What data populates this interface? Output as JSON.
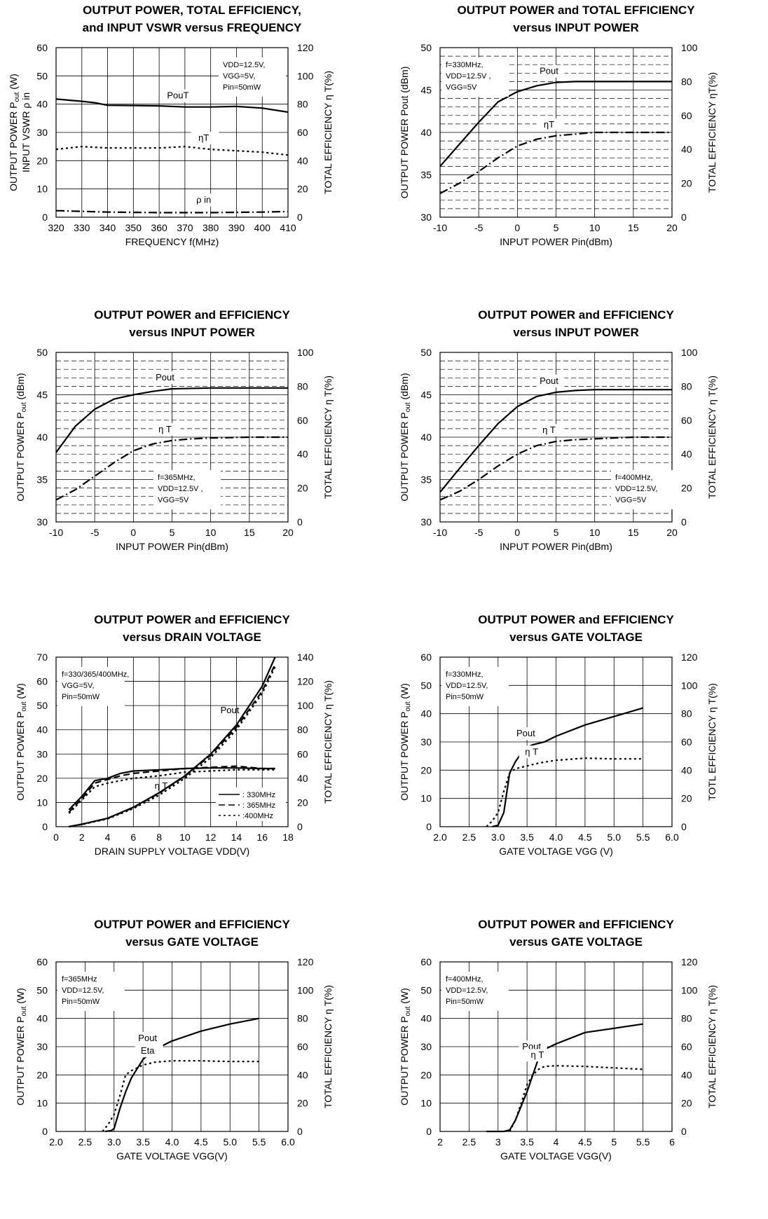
{
  "chart_data": [
    {
      "type": "line",
      "title": [
        "OUTPUT POWER, TOTAL EFFICIENCY,",
        "and INPUT VSWR versus FREQUENCY"
      ],
      "xlabel": "FREQUENCY f(MHz)",
      "ylabel_left": [
        "OUTPUT POWER P",
        "out",
        " (W)"
      ],
      "ylabel_left2": "INPUT VSWR ρ in",
      "ylabel_right": "TOTAL EFFICIENCY η T(%)",
      "xlim": [
        320,
        410
      ],
      "ylim": [
        0,
        60
      ],
      "y2lim": [
        0,
        120
      ],
      "xticks": [
        "320",
        "330",
        "340",
        "350",
        "360",
        "370",
        "380",
        "390",
        "400",
        "410"
      ],
      "yticks": [
        "0",
        "10",
        "20",
        "30",
        "40",
        "50",
        "60"
      ],
      "y2ticks": [
        "0",
        "20",
        "40",
        "60",
        "80",
        "100",
        "120"
      ],
      "grid": "major",
      "conditions": [
        "VDD=12.5V,",
        "VGG=5V,",
        "Pin=50mW"
      ],
      "series": [
        {
          "name": "PouT",
          "axis": "left",
          "style": "solid",
          "x": [
            320,
            330,
            335,
            340,
            350,
            360,
            370,
            380,
            390,
            400,
            410
          ],
          "y": [
            41.8,
            41,
            40.5,
            39.6,
            39.5,
            39.4,
            39,
            39,
            39.2,
            38.6,
            37.2
          ]
        },
        {
          "name": "ηT",
          "axis": "right",
          "style": "dot",
          "x": [
            320,
            330,
            340,
            350,
            360,
            370,
            380,
            390,
            400,
            410
          ],
          "y": [
            48,
            50,
            49,
            49,
            49,
            50,
            48,
            47,
            46,
            44
          ]
        },
        {
          "name": "ρ in",
          "axis": "left",
          "style": "dashdot",
          "x": [
            320,
            340,
            360,
            380,
            400,
            410
          ],
          "y": [
            2.3,
            1.8,
            1.6,
            1.6,
            1.8,
            2
          ]
        }
      ]
    },
    {
      "type": "line",
      "title": [
        "OUTPUT POWER and TOTAL EFFICIENCY",
        "versus INPUT POWER"
      ],
      "xlabel": "INPUT POWER Pin(dBm)",
      "ylabel_left": [
        "OUTPUT POWER Pout (dBm)"
      ],
      "ylabel_right": "TOTAL EFFICIENCY ηT(%)",
      "xlim": [
        -10,
        20
      ],
      "ylim": [
        30,
        50
      ],
      "y2lim": [
        0,
        100
      ],
      "xticks": [
        "-10",
        "-5",
        "0",
        "5",
        "10",
        "15",
        "20"
      ],
      "yticks": [
        "30",
        "35",
        "40",
        "45",
        "50"
      ],
      "y2ticks": [
        "0",
        "20",
        "40",
        "60",
        "80",
        "100"
      ],
      "grid": "major+minor-dashed",
      "conditions": [
        "f=330MHz,",
        "VDD=12.5V ,",
        "VGG=5V"
      ],
      "series": [
        {
          "name": "Pout",
          "axis": "left",
          "style": "solid",
          "x": [
            -10,
            -7.5,
            -5,
            -2.5,
            0,
            2.5,
            5,
            7.5,
            10,
            15,
            20
          ],
          "y": [
            36,
            38.6,
            41.2,
            43.6,
            44.8,
            45.5,
            45.9,
            46,
            46,
            46,
            46
          ]
        },
        {
          "name": "ηT",
          "axis": "right",
          "style": "dashdot",
          "x": [
            -10,
            -7.5,
            -5,
            -2.5,
            0,
            2.5,
            5,
            7.5,
            10,
            15,
            20
          ],
          "y": [
            14,
            20,
            27,
            35,
            42,
            46,
            48,
            49,
            50,
            50,
            50
          ]
        }
      ]
    },
    {
      "type": "line",
      "title": [
        "OUTPUT POWER and EFFICIENCY",
        "versus INPUT POWER"
      ],
      "xlabel": "INPUT POWER Pin(dBm)",
      "ylabel_left": [
        "OUTPUT POWER P",
        "out",
        " (dBm)"
      ],
      "ylabel_right": "TOTAL EFFICIENCY η T(%)",
      "xlim": [
        -10,
        20
      ],
      "ylim": [
        30,
        50
      ],
      "y2lim": [
        0,
        100
      ],
      "xticks": [
        "-10",
        "-5",
        "0",
        "5",
        "10",
        "15",
        "20"
      ],
      "yticks": [
        "30",
        "35",
        "40",
        "45",
        "50"
      ],
      "y2ticks": [
        "0",
        "20",
        "40",
        "60",
        "80",
        "100"
      ],
      "grid": "major+minor-dashed",
      "conditions": [
        "f=365MHz,",
        "VDD=12.5V ,",
        "VGG=5V"
      ],
      "series": [
        {
          "name": "Pout",
          "axis": "left",
          "style": "solid",
          "x": [
            -10,
            -7.5,
            -5,
            -2.5,
            0,
            2.5,
            5,
            10,
            15,
            20
          ],
          "y": [
            38.2,
            41.3,
            43.3,
            44.5,
            45,
            45.4,
            45.7,
            45.8,
            45.8,
            45.8
          ]
        },
        {
          "name": "η T",
          "axis": "right",
          "style": "dashdot",
          "x": [
            -10,
            -7.5,
            -5,
            -2.5,
            0,
            2.5,
            5,
            7.5,
            10,
            15,
            20
          ],
          "y": [
            13,
            19,
            27,
            35,
            42,
            46,
            48,
            49,
            49.5,
            50,
            50
          ]
        }
      ]
    },
    {
      "type": "line",
      "title": [
        "OUTPUT POWER and EFFICIENCY",
        "versus INPUT POWER"
      ],
      "xlabel": "INPUT POWER Pin(dBm)",
      "ylabel_left": [
        "OUTPUT POWER P",
        "out",
        " (dBm)"
      ],
      "ylabel_right": "TOTAL EFFICIENCY η T(%)",
      "xlim": [
        -10,
        20
      ],
      "ylim": [
        30,
        50
      ],
      "y2lim": [
        0,
        100
      ],
      "xticks": [
        "-10",
        "-5",
        "0",
        "5",
        "10",
        "15",
        "20"
      ],
      "yticks": [
        "30",
        "35",
        "40",
        "45",
        "50"
      ],
      "y2ticks": [
        "0",
        "20",
        "40",
        "60",
        "80",
        "100"
      ],
      "grid": "major+minor-dashed",
      "conditions": [
        "f=400MHz,",
        "VDD=12.5V,",
        "VGG=5V"
      ],
      "series": [
        {
          "name": "Pout",
          "axis": "left",
          "style": "solid",
          "x": [
            -10,
            -7.5,
            -5,
            -2.5,
            0,
            2.5,
            5,
            7.5,
            10,
            15,
            20
          ],
          "y": [
            33.5,
            36.3,
            39,
            41.6,
            43.6,
            44.8,
            45.3,
            45.5,
            45.6,
            45.6,
            45.6
          ]
        },
        {
          "name": "η T",
          "axis": "right",
          "style": "dashdot",
          "x": [
            -10,
            -7.5,
            -5,
            -2.5,
            0,
            2.5,
            5,
            7.5,
            10,
            15,
            20
          ],
          "y": [
            13,
            18,
            25,
            33,
            40,
            45,
            47.5,
            48.5,
            49,
            50,
            50
          ]
        }
      ]
    },
    {
      "type": "line",
      "title": [
        "OUTPUT POWER and EFFICIENCY",
        "versus DRAIN VOLTAGE"
      ],
      "xlabel": "DRAIN SUPPLY VOLTAGE VDD(V)",
      "ylabel_left": [
        "OUTPUT POWER P",
        "out",
        " (W)"
      ],
      "ylabel_right": "TOTAL EFFICIENCY η T(%)",
      "xlim": [
        0,
        18
      ],
      "ylim": [
        0,
        70
      ],
      "y2lim": [
        0,
        140
      ],
      "xticks": [
        "0",
        "2",
        "4",
        "6",
        "8",
        "10",
        "12",
        "14",
        "16",
        "18"
      ],
      "yticks": [
        "0",
        "10",
        "20",
        "30",
        "40",
        "50",
        "60",
        "70"
      ],
      "y2ticks": [
        "0",
        "20",
        "40",
        "60",
        "80",
        "100",
        "120",
        "140"
      ],
      "grid": "major",
      "conditions": [
        "f=330/365/400MHz,",
        "VGG=5V,",
        "Pin=50mW"
      ],
      "curve_labels": [
        "Pout",
        "η T"
      ],
      "legend": [
        ": 330MHz",
        ": 365MHz",
        ":400MHz"
      ],
      "series": [
        {
          "name": "330MHz",
          "axis": "left",
          "style": "solid",
          "x": [
            1,
            2,
            4,
            6,
            8,
            10,
            12,
            14,
            16,
            17
          ],
          "y": [
            0,
            1,
            3.5,
            8,
            14,
            21,
            30,
            42,
            58,
            70
          ]
        },
        {
          "name": "365MHz",
          "axis": "left",
          "style": "dash",
          "x": [
            1,
            2,
            4,
            6,
            8,
            10,
            12,
            14,
            16,
            17
          ],
          "y": [
            0,
            1,
            3.4,
            7.8,
            13.8,
            20.8,
            29.5,
            41,
            56,
            67
          ]
        },
        {
          "name": "400MHz",
          "axis": "left",
          "style": "dot",
          "x": [
            1,
            2,
            4,
            6,
            8,
            10,
            12,
            14,
            16,
            17
          ],
          "y": [
            0,
            0.9,
            3.2,
            7.5,
            13,
            20,
            28.5,
            40,
            55,
            66
          ]
        },
        {
          "name": "330MHz",
          "axis": "right",
          "style": "solid",
          "x": [
            1,
            2,
            3,
            4,
            5,
            6,
            8,
            10,
            12,
            14,
            16,
            17
          ],
          "y": [
            14,
            25,
            38,
            40,
            44,
            46,
            47,
            48,
            48.5,
            48.5,
            48,
            48
          ]
        },
        {
          "name": "365MHz",
          "axis": "right",
          "style": "dash",
          "x": [
            1,
            2,
            3,
            4,
            5,
            6,
            8,
            10,
            12,
            14,
            16,
            17
          ],
          "y": [
            12,
            23,
            36,
            39,
            42,
            44,
            46,
            48,
            49,
            50,
            48,
            48
          ]
        },
        {
          "name": "400MHz",
          "axis": "right",
          "style": "dot",
          "x": [
            1,
            2,
            3,
            4,
            5,
            6,
            8,
            10,
            12,
            14,
            16,
            17
          ],
          "y": [
            11,
            22,
            33,
            36,
            38,
            40,
            42,
            45,
            46,
            47,
            47,
            47
          ]
        }
      ]
    },
    {
      "type": "line",
      "title": [
        "OUTPUT POWER and  EFFICIENCY",
        "versus  GATE  VOLTAGE"
      ],
      "xlabel": "GATE VOLTAGE VGG (V)",
      "ylabel_left": [
        "OUTPUT POWER P",
        "out",
        " (W)"
      ],
      "ylabel_right": "TOTL EFFICIENCY η T(%)",
      "xlim": [
        2,
        6
      ],
      "ylim": [
        0,
        60
      ],
      "y2lim": [
        0,
        120
      ],
      "xticks": [
        "2.0",
        "2.5",
        "3.0",
        "3.5",
        "4.0",
        "4.5",
        "5.0",
        "5.5",
        "6.0"
      ],
      "yticks": [
        "0",
        "10",
        "20",
        "30",
        "40",
        "50",
        "60"
      ],
      "y2ticks": [
        "0",
        "20",
        "40",
        "60",
        "80",
        "100",
        "120"
      ],
      "grid": "major",
      "conditions": [
        "f=330MHz,",
        "VDD=12.5V,",
        "Pin=50mW"
      ],
      "series": [
        {
          "name": "Pout",
          "axis": "left",
          "style": "solid",
          "x": [
            2.9,
            3.0,
            3.1,
            3.2,
            3.3,
            3.4,
            3.5,
            3.6,
            3.8,
            4.0,
            4.5,
            5.0,
            5.5
          ],
          "y": [
            0,
            0.5,
            5,
            19,
            23,
            26,
            28,
            29,
            30,
            32,
            36,
            39,
            42
          ]
        },
        {
          "name": "η T",
          "axis": "right",
          "style": "dot",
          "x": [
            2.8,
            2.9,
            3.0,
            3.1,
            3.2,
            3.3,
            3.5,
            3.7,
            4.0,
            4.5,
            5.0,
            5.5
          ],
          "y": [
            0,
            4,
            10,
            25,
            38,
            41,
            43,
            45,
            47,
            48.5,
            48,
            48
          ]
        }
      ]
    },
    {
      "type": "line",
      "title": [
        "OUTPUT POWER and  EFFICIENCY",
        "versus GATE  VOLTAGE"
      ],
      "xlabel": "GATE VOLTAGE VGG(V)",
      "ylabel_left": [
        "OUTPUT POWER P",
        "out",
        " (W)"
      ],
      "ylabel_right": "TOTAL EFFICIENCY η T(%)",
      "xlim": [
        2,
        6
      ],
      "ylim": [
        0,
        60
      ],
      "y2lim": [
        0,
        120
      ],
      "xticks": [
        "2.0",
        "2.5",
        "3.0",
        "3.5",
        "4.0",
        "4.5",
        "5.0",
        "5.5",
        "6.0"
      ],
      "yticks": [
        "0",
        "10",
        "20",
        "30",
        "40",
        "50",
        "60"
      ],
      "y2ticks": [
        "0",
        "20",
        "40",
        "60",
        "80",
        "100",
        "120"
      ],
      "grid": "major",
      "conditions": [
        "f=365MHz",
        "VDD=12.5V,",
        "Pin=50mW"
      ],
      "series": [
        {
          "name": "Pout",
          "axis": "left",
          "style": "solid",
          "x": [
            2.85,
            2.95,
            3.0,
            3.1,
            3.2,
            3.3,
            3.5,
            3.7,
            4.0,
            4.5,
            5.0,
            5.5
          ],
          "y": [
            0,
            0.3,
            1,
            8,
            14,
            19,
            25.5,
            29,
            32,
            35.5,
            38,
            40
          ]
        },
        {
          "name": "Eta",
          "axis": "right",
          "style": "dot",
          "x": [
            2.8,
            2.9,
            3.0,
            3.1,
            3.2,
            3.3,
            3.5,
            3.7,
            4.0,
            4.5,
            5.0,
            5.5
          ],
          "y": [
            0,
            5,
            12,
            25,
            40,
            43,
            47,
            49,
            50,
            50,
            49.5,
            49.5
          ]
        }
      ]
    },
    {
      "type": "line",
      "title": [
        "OUTPUT POWER and EFFICIENCY",
        "versus GATE VOLTAGE"
      ],
      "xlabel": "GATE VOLTAGE VGG(V)",
      "ylabel_left": [
        "OUTPUT POWER P",
        "out",
        " (W)"
      ],
      "ylabel_right": "TOTAL EFFICIENCY η T(%)",
      "xlim": [
        2,
        6
      ],
      "ylim": [
        0,
        60
      ],
      "y2lim": [
        0,
        120
      ],
      "xticks": [
        "2",
        "2.5",
        "3",
        "3.5",
        "4",
        "4.5",
        "5",
        "5.5",
        "6"
      ],
      "yticks": [
        "0",
        "10",
        "20",
        "30",
        "40",
        "50",
        "60"
      ],
      "y2ticks": [
        "0",
        "20",
        "40",
        "60",
        "80",
        "100",
        "120"
      ],
      "grid": "major",
      "conditions": [
        "f=400MHz,",
        "VDD=12.5V,",
        "Pin=50mW"
      ],
      "series": [
        {
          "name": "Pout",
          "axis": "left",
          "style": "solid",
          "x": [
            2.8,
            3.0,
            3.1,
            3.2,
            3.3,
            3.4,
            3.5,
            3.6,
            3.7,
            3.8,
            4.0,
            4.5,
            5.0,
            5.5
          ],
          "y": [
            0,
            0,
            0,
            0.5,
            4,
            9,
            14,
            20,
            26,
            29,
            31,
            35,
            36.5,
            38
          ]
        },
        {
          "name": "η T",
          "axis": "right",
          "style": "dot",
          "x": [
            3.2,
            3.3,
            3.4,
            3.5,
            3.6,
            3.7,
            3.8,
            4.0,
            4.5,
            5.0,
            5.5
          ],
          "y": [
            0,
            8,
            20,
            33,
            40,
            44,
            46,
            46.5,
            46,
            45,
            44
          ]
        }
      ]
    }
  ]
}
